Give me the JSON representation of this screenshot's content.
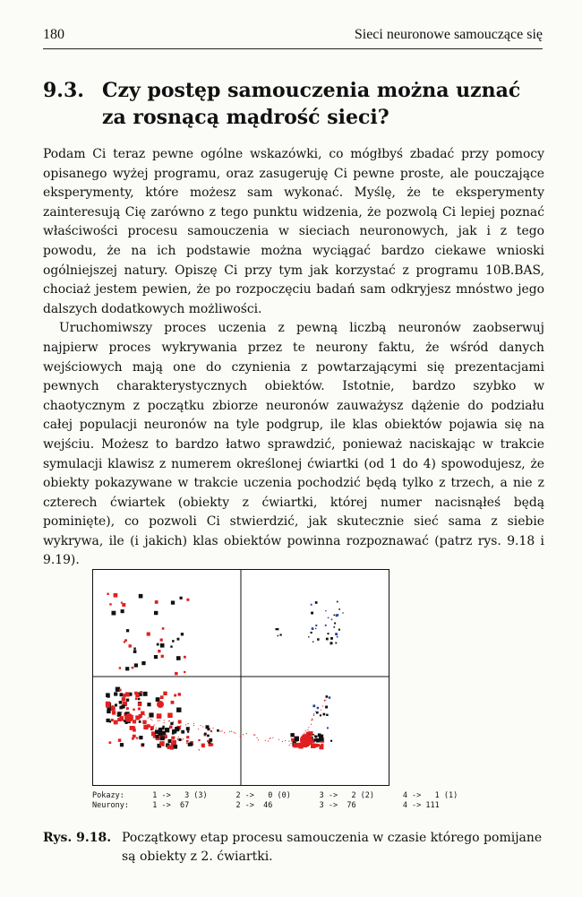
{
  "header": {
    "page_number": "180",
    "running_title": "Sieci neuronowe samouczące się"
  },
  "section": {
    "number": "9.3.",
    "title": "Czy postęp samouczenia można uznać za rosnącą mądrość sieci?"
  },
  "paragraphs": [
    "Podam Ci teraz pewne ogólne wskazówki, co mógłbyś zbadać przy pomocy opisanego wyżej programu, oraz zasugeruję Ci pewne proste, ale pouczające eksperymenty, które możesz sam wykonać. Myślę, że te eksperymenty zainteresują Cię zarówno z tego punktu widzenia, że pozwolą Ci lepiej poznać właściwości procesu samouczenia w sieciach neuronowych, jak i z tego powodu, że na ich podstawie można wyciągać bardzo ciekawe wnioski ogólniejszej natury. Opiszę Ci przy tym jak korzystać z programu 10B.BAS, chociaż jestem pewien, że po rozpoczęciu badań sam odkryjesz mnóstwo jego dalszych dodatkowych możliwości.",
    "Uruchomiwszy proces uczenia z pewną liczbą neuronów zaobserwuj najpierw proces wykrywania przez te neurony faktu, że wśród danych wejściowych mają one do czynienia z powtarzającymi się prezentacjami pewnych charakterystycznych obiektów. Istotnie, bardzo szybko w chaotycznym z początku zbiorze neuronów zauważysz dążenie do podziału całej populacji neuronów na tyle podgrup, ile klas obiektów pojawia się na wejściu. Możesz to bardzo łatwo sprawdzić, ponieważ naciskając w trakcie symulacji klawisz z numerem określonej ćwiartki (od 1 do 4) spowodujesz, że obiekty pokazywane w trakcie uczenia pochodzić będą tylko z trzech, a nie z czterech ćwiartek (obiekty z ćwiartki, której numer nacisnąłeś będą pominięte), co pozwoli Ci stwierdzić, jak skutecznie sieć sama z siebie wykrywa, ile (i jakich) klas obiektów powinna rozpoznawać (patrz rys. 9.18 i 9.19)."
  ],
  "figure": {
    "legend": {
      "shown_label": "Pokazy:",
      "neurons_label": "Neurony:",
      "shown": [
        "1 ->   3 (3)",
        "2 ->   0 (0)",
        "3 ->   2 (2)",
        "4 ->   1 (1)"
      ],
      "neurons": [
        "1 ->  67",
        "2 ->  46",
        "3 ->  76",
        "4 -> 111"
      ]
    },
    "colors": {
      "red": "#e02020",
      "black": "#111111",
      "blue": "#2a3f9e"
    }
  },
  "caption": {
    "label": "Rys. 9.18.",
    "text": "Początkowy etap procesu samouczenia w czasie którego pomijane są obiekty z 2. ćwiartki."
  }
}
